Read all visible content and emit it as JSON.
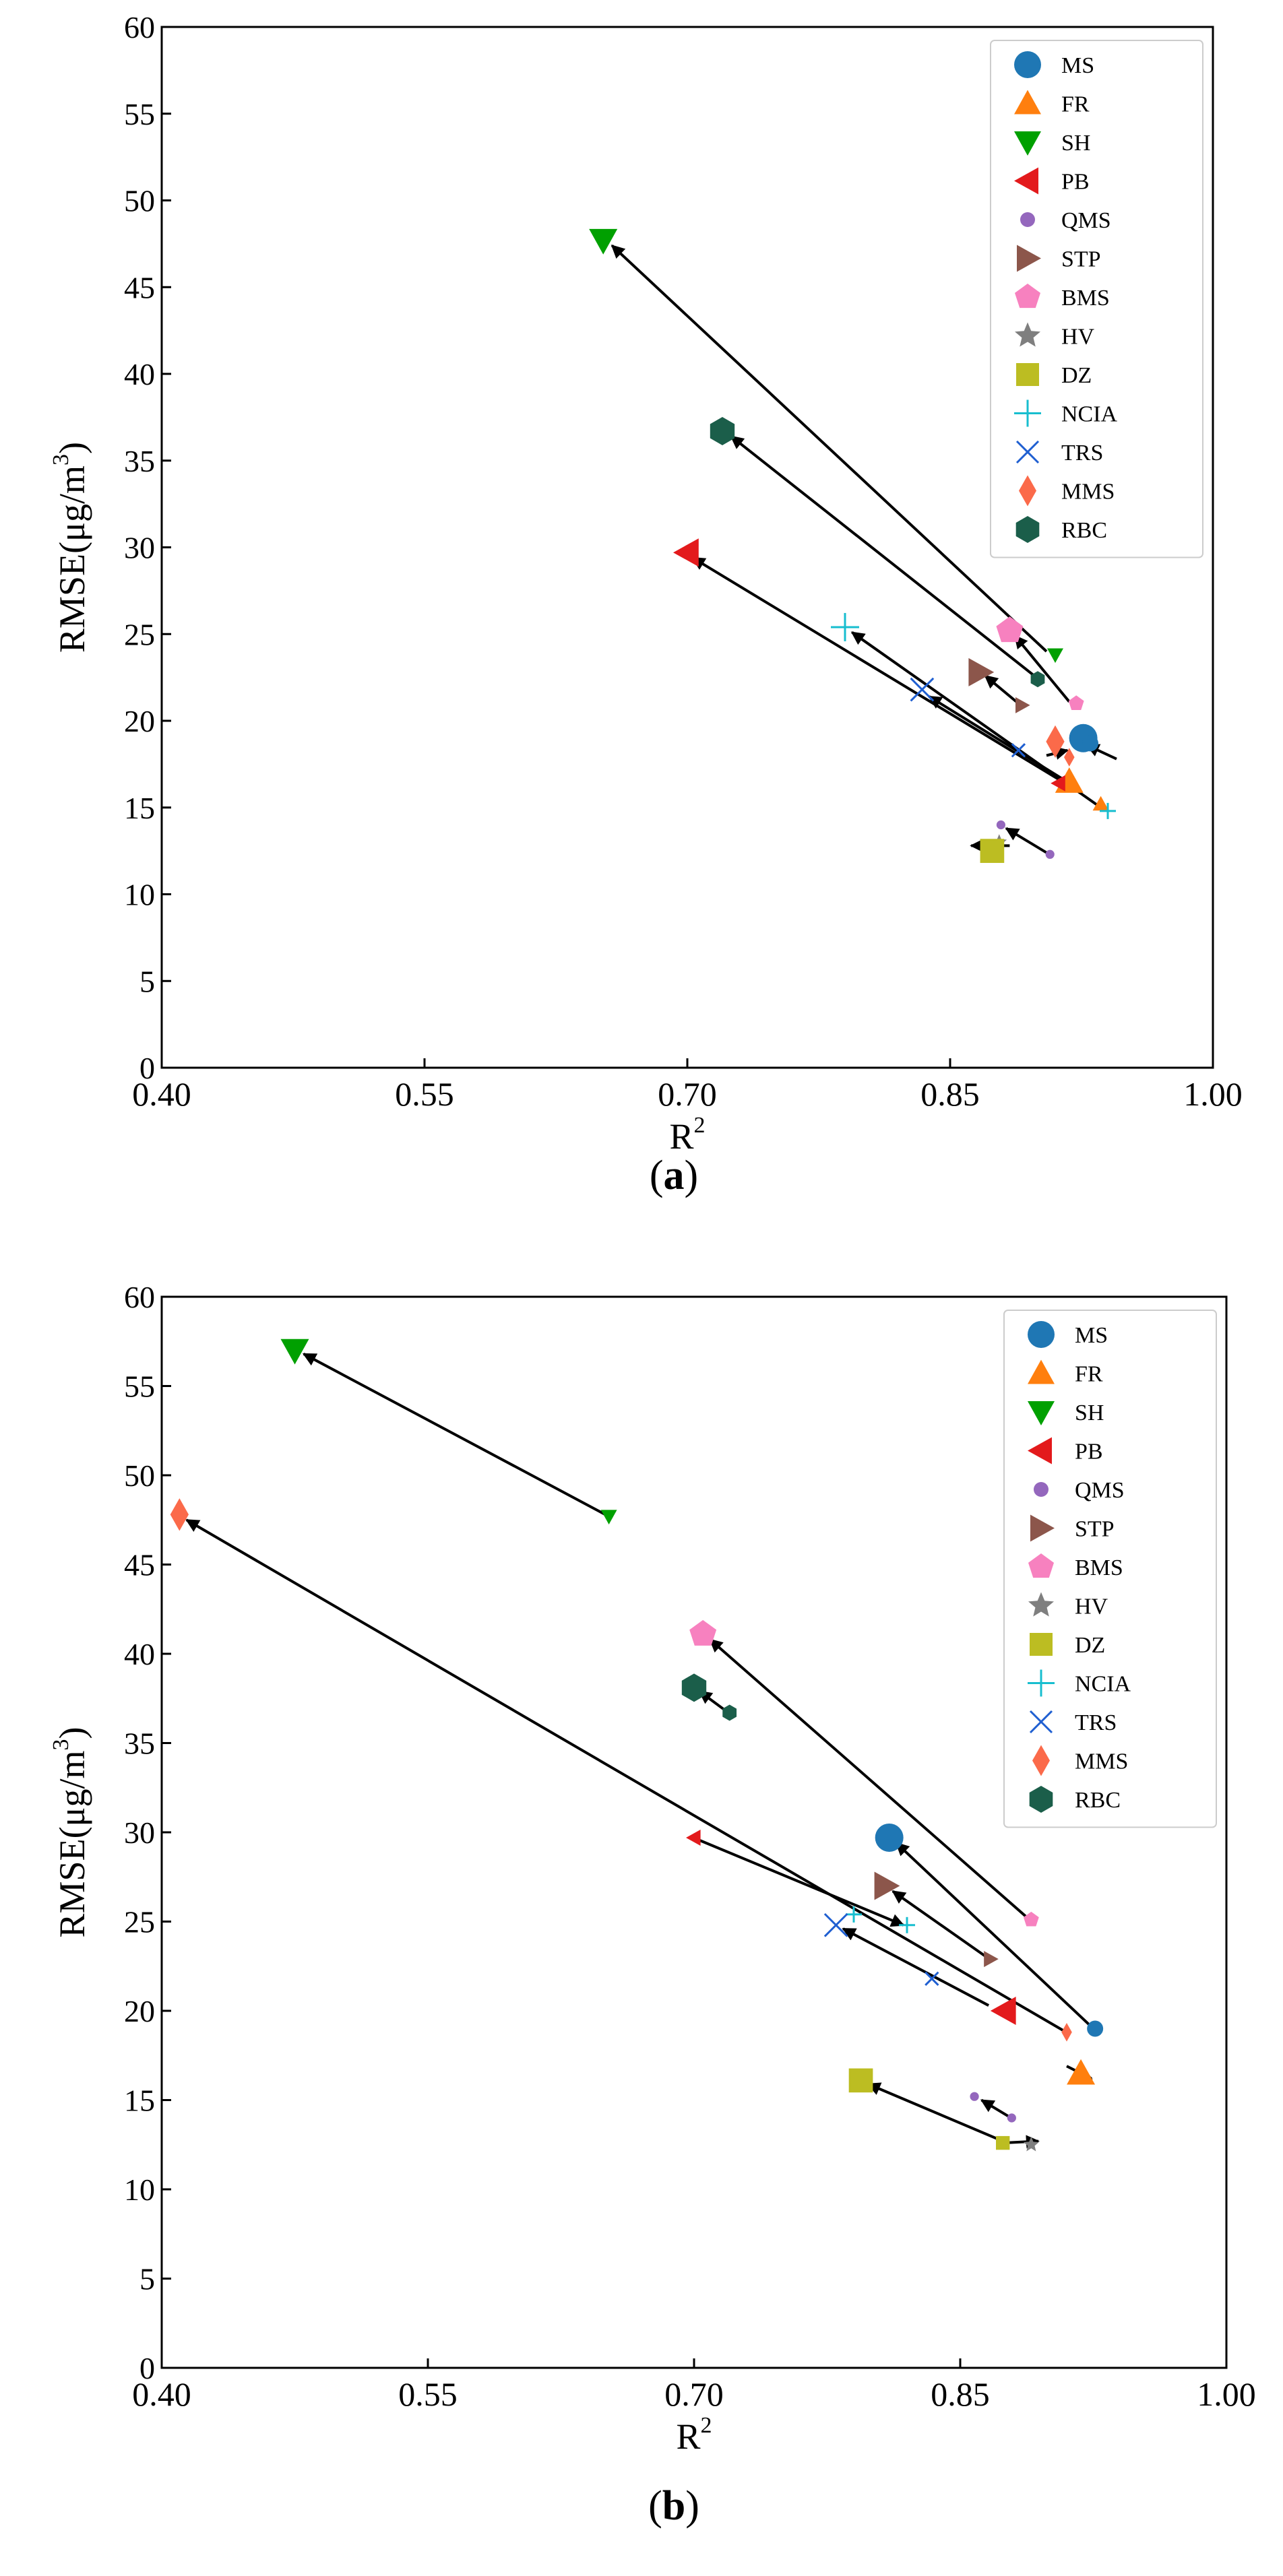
{
  "chart_data": [
    {
      "type": "scatter",
      "panel_label": "(a)",
      "panel_letter": "a",
      "xlabel": "R",
      "xlabel_superscript": "2",
      "ylabel": "RMSE(μg/m",
      "ylabel_superscript": "3",
      "ylabel_suffix": ")",
      "xlim": [
        0.4,
        1.0
      ],
      "ylim": [
        0,
        60
      ],
      "x_ticks": [
        0.4,
        0.55,
        0.7,
        0.85,
        1.0
      ],
      "x_tick_labels": [
        "0.40",
        "0.55",
        "0.70",
        "0.85",
        "1.00"
      ],
      "y_ticks": [
        0,
        5,
        10,
        15,
        20,
        25,
        30,
        35,
        40,
        45,
        50,
        55,
        60
      ],
      "y_tick_labels": [
        "0",
        "5",
        "10",
        "15",
        "20",
        "25",
        "30",
        "35",
        "40",
        "45",
        "50",
        "55",
        "60"
      ],
      "legend_position": "top-right",
      "series": [
        {
          "name": "MS",
          "marker": "circle",
          "color": "#1f77b4",
          "points": [
            {
              "x": 0.926,
              "y": 19.0,
              "size": "large"
            },
            {
              "x": 0.93,
              "y": 18.7,
              "size": "small"
            }
          ],
          "arrows": [
            {
              "from": [
                0.945,
                17.8
              ],
              "to": [
                0.928,
                18.6
              ]
            }
          ]
        },
        {
          "name": "FR",
          "marker": "triangle-up",
          "color": "#ff7f0e",
          "points": [
            {
              "x": 0.918,
              "y": 16.5,
              "size": "large"
            },
            {
              "x": 0.936,
              "y": 15.2,
              "size": "small"
            }
          ],
          "arrows": []
        },
        {
          "name": "SH",
          "marker": "triangle-down",
          "color": "#00a000",
          "points": [
            {
              "x": 0.652,
              "y": 47.7,
              "size": "large"
            },
            {
              "x": 0.91,
              "y": 23.8,
              "size": "small"
            }
          ],
          "arrows": [
            {
              "from": [
                0.905,
                24.0
              ],
              "to": [
                0.657,
                47.4
              ]
            }
          ]
        },
        {
          "name": "PB",
          "marker": "triangle-left",
          "color": "#e31a1c",
          "points": [
            {
              "x": 0.7,
              "y": 29.7,
              "size": "large"
            },
            {
              "x": 0.912,
              "y": 16.4,
              "size": "small"
            }
          ],
          "arrows": [
            {
              "from": [
                0.914,
                16.5
              ],
              "to": [
                0.703,
                29.4
              ]
            }
          ]
        },
        {
          "name": "QMS",
          "marker": "dot",
          "color": "#9467bd",
          "points": [
            {
              "x": 0.879,
              "y": 14.0,
              "size": "small"
            },
            {
              "x": 0.907,
              "y": 12.3,
              "size": "small"
            }
          ],
          "arrows": [
            {
              "from": [
                0.905,
                12.4
              ],
              "to": [
                0.882,
                13.8
              ]
            }
          ]
        },
        {
          "name": "STP",
          "marker": "triangle-right",
          "color": "#8c564b",
          "points": [
            {
              "x": 0.867,
              "y": 22.8,
              "size": "large"
            },
            {
              "x": 0.891,
              "y": 20.9,
              "size": "small"
            }
          ],
          "arrows": [
            {
              "from": [
                0.889,
                21.0
              ],
              "to": [
                0.87,
                22.6
              ]
            }
          ]
        },
        {
          "name": "BMS",
          "marker": "pentagon",
          "color": "#f781bf",
          "points": [
            {
              "x": 0.884,
              "y": 25.2,
              "size": "large"
            },
            {
              "x": 0.922,
              "y": 21.0,
              "size": "small"
            }
          ],
          "arrows": [
            {
              "from": [
                0.918,
                21.1
              ],
              "to": [
                0.887,
                24.9
              ]
            }
          ]
        },
        {
          "name": "HV",
          "marker": "star",
          "color": "#7f7f7f",
          "points": [
            {
              "x": 0.878,
              "y": 13.0,
              "size": "small"
            }
          ],
          "arrows": []
        },
        {
          "name": "DZ",
          "marker": "square",
          "color": "#bcbd22",
          "points": [
            {
              "x": 0.874,
              "y": 12.5,
              "size": "large"
            }
          ],
          "arrows": [
            {
              "from": [
                0.884,
                12.8
              ],
              "to": [
                0.862,
                12.8
              ]
            }
          ]
        },
        {
          "name": "NCIA",
          "marker": "plus",
          "color": "#17becf",
          "points": [
            {
              "x": 0.79,
              "y": 25.4,
              "size": "large"
            },
            {
              "x": 0.94,
              "y": 14.8,
              "size": "small"
            }
          ],
          "arrows": [
            {
              "from": [
                0.936,
                15.0
              ],
              "to": [
                0.794,
                25.1
              ]
            }
          ]
        },
        {
          "name": "TRS",
          "marker": "x",
          "color": "#1f5fd1",
          "points": [
            {
              "x": 0.834,
              "y": 21.8,
              "size": "large"
            },
            {
              "x": 0.889,
              "y": 18.3,
              "size": "small"
            }
          ],
          "arrows": [
            {
              "from": [
                0.923,
                16.1
              ],
              "to": [
                0.838,
                21.4
              ]
            }
          ]
        },
        {
          "name": "MMS",
          "marker": "diamond",
          "color": "#fb6a4a",
          "points": [
            {
              "x": 0.91,
              "y": 18.8,
              "size": "large"
            },
            {
              "x": 0.918,
              "y": 17.9,
              "size": "small"
            }
          ],
          "arrows": [
            {
              "from": [
                0.905,
                18.0
              ],
              "to": [
                0.917,
                18.3
              ]
            }
          ]
        },
        {
          "name": "RBC",
          "marker": "hexagon",
          "color": "#1b5e4a",
          "points": [
            {
              "x": 0.72,
              "y": 36.7,
              "size": "large"
            },
            {
              "x": 0.9,
              "y": 22.4,
              "size": "small"
            }
          ],
          "arrows": [
            {
              "from": [
                0.898,
                22.6
              ],
              "to": [
                0.725,
                36.4
              ]
            }
          ]
        }
      ]
    },
    {
      "type": "scatter",
      "panel_label": "(b)",
      "panel_letter": "b",
      "xlabel": "R",
      "xlabel_superscript": "2",
      "ylabel": "RMSE(μg/m",
      "ylabel_superscript": "3",
      "ylabel_suffix": ")",
      "xlim": [
        0.4,
        1.0
      ],
      "ylim": [
        0,
        60
      ],
      "x_ticks": [
        0.4,
        0.55,
        0.7,
        0.85,
        1.0
      ],
      "x_tick_labels": [
        "0.40",
        "0.55",
        "0.70",
        "0.85",
        "1.00"
      ],
      "y_ticks": [
        0,
        5,
        10,
        15,
        20,
        25,
        30,
        35,
        40,
        45,
        50,
        55,
        60
      ],
      "y_tick_labels": [
        "0",
        "5",
        "10",
        "15",
        "20",
        "25",
        "30",
        "35",
        "40",
        "45",
        "50",
        "55",
        "60"
      ],
      "legend_position": "top-right",
      "series": [
        {
          "name": "MS",
          "marker": "circle",
          "color": "#1f77b4",
          "points": [
            {
              "x": 0.81,
              "y": 29.7,
              "size": "large"
            },
            {
              "x": 0.926,
              "y": 19.0,
              "size": "small"
            }
          ],
          "arrows": [
            {
              "from": [
                0.924,
                19.1
              ],
              "to": [
                0.814,
                29.4
              ]
            }
          ]
        },
        {
          "name": "FR",
          "marker": "triangle-up",
          "color": "#ff7f0e",
          "points": [
            {
              "x": 0.918,
              "y": 16.5,
              "size": "large"
            }
          ],
          "arrows": [
            {
              "from": [
                0.91,
                16.9
              ],
              "to": [
                0.924,
                16.2
              ]
            }
          ]
        },
        {
          "name": "SH",
          "marker": "triangle-down",
          "color": "#00a000",
          "points": [
            {
              "x": 0.475,
              "y": 57.0,
              "size": "large"
            },
            {
              "x": 0.652,
              "y": 47.7,
              "size": "small"
            }
          ],
          "arrows": [
            {
              "from": [
                0.65,
                47.8
              ],
              "to": [
                0.48,
                56.8
              ]
            }
          ]
        },
        {
          "name": "PB",
          "marker": "triangle-left",
          "color": "#e31a1c",
          "points": [
            {
              "x": 0.875,
              "y": 20.0,
              "size": "large"
            },
            {
              "x": 0.7,
              "y": 29.7,
              "size": "small"
            }
          ],
          "arrows": [
            {
              "from": [
                0.702,
                29.6
              ],
              "to": [
                0.818,
                24.8
              ]
            }
          ]
        },
        {
          "name": "QMS",
          "marker": "dot",
          "color": "#9467bd",
          "points": [
            {
              "x": 0.858,
              "y": 15.2,
              "size": "small"
            },
            {
              "x": 0.879,
              "y": 14.0,
              "size": "small"
            }
          ],
          "arrows": [
            {
              "from": [
                0.877,
                14.1
              ],
              "to": [
                0.862,
                15.0
              ]
            }
          ]
        },
        {
          "name": "STP",
          "marker": "triangle-right",
          "color": "#8c564b",
          "points": [
            {
              "x": 0.808,
              "y": 27.0,
              "size": "large"
            },
            {
              "x": 0.867,
              "y": 22.9,
              "size": "small"
            }
          ],
          "arrows": [
            {
              "from": [
                0.865,
                23.0
              ],
              "to": [
                0.812,
                26.7
              ]
            }
          ]
        },
        {
          "name": "BMS",
          "marker": "pentagon",
          "color": "#f781bf",
          "points": [
            {
              "x": 0.705,
              "y": 41.1,
              "size": "large"
            },
            {
              "x": 0.89,
              "y": 25.1,
              "size": "small"
            }
          ],
          "arrows": [
            {
              "from": [
                0.888,
                25.2
              ],
              "to": [
                0.709,
                40.8
              ]
            }
          ]
        },
        {
          "name": "HV",
          "marker": "star",
          "color": "#7f7f7f",
          "points": [
            {
              "x": 0.89,
              "y": 12.5,
              "size": "small"
            }
          ],
          "arrows": []
        },
        {
          "name": "DZ",
          "marker": "square",
          "color": "#bcbd22",
          "points": [
            {
              "x": 0.794,
              "y": 16.1,
              "size": "large"
            },
            {
              "x": 0.874,
              "y": 12.6,
              "size": "small"
            }
          ],
          "arrows": [
            {
              "from": [
                0.874,
                12.7
              ],
              "to": [
                0.798,
                15.9
              ]
            },
            {
              "from": [
                0.874,
                12.6
              ],
              "to": [
                0.894,
                12.7
              ]
            }
          ]
        },
        {
          "name": "NCIA",
          "marker": "plus",
          "color": "#17becf",
          "points": [
            {
              "x": 0.79,
              "y": 25.4,
              "size": "small"
            },
            {
              "x": 0.82,
              "y": 24.8,
              "size": "small"
            }
          ],
          "arrows": []
        },
        {
          "name": "TRS",
          "marker": "x",
          "color": "#1f5fd1",
          "points": [
            {
              "x": 0.78,
              "y": 24.8,
              "size": "large"
            },
            {
              "x": 0.834,
              "y": 21.8,
              "size": "small"
            }
          ],
          "arrows": [
            {
              "from": [
                0.866,
                20.3
              ],
              "to": [
                0.784,
                24.6
              ]
            }
          ]
        },
        {
          "name": "MMS",
          "marker": "diamond",
          "color": "#fb6a4a",
          "points": [
            {
              "x": 0.41,
              "y": 47.8,
              "size": "large"
            },
            {
              "x": 0.91,
              "y": 18.8,
              "size": "small"
            }
          ],
          "arrows": [
            {
              "from": [
                0.908,
                18.9
              ],
              "to": [
                0.414,
                47.5
              ]
            }
          ]
        },
        {
          "name": "RBC",
          "marker": "hexagon",
          "color": "#1b5e4a",
          "points": [
            {
              "x": 0.7,
              "y": 38.1,
              "size": "large"
            },
            {
              "x": 0.72,
              "y": 36.7,
              "size": "small"
            }
          ],
          "arrows": [
            {
              "from": [
                0.718,
                36.8
              ],
              "to": [
                0.703,
                37.9
              ]
            }
          ]
        }
      ]
    }
  ]
}
